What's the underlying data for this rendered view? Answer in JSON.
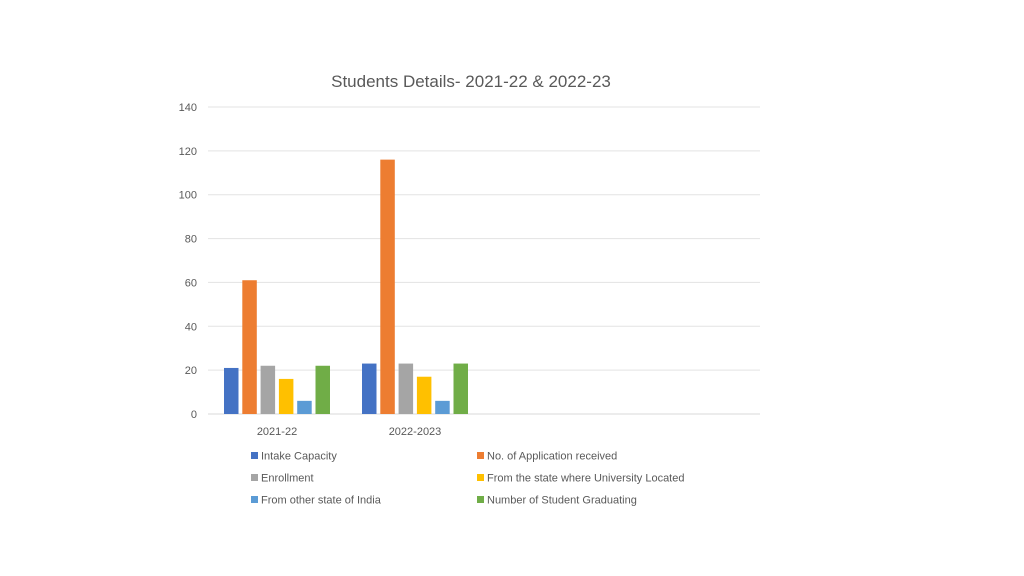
{
  "chart_data": {
    "type": "bar",
    "title": "Students Details- 2021-22 & 2022-23",
    "xlabel": "",
    "ylabel": "",
    "categories": [
      "2021-22",
      "2022-2023"
    ],
    "ylim": [
      0,
      140
    ],
    "yticks": [
      0,
      20,
      40,
      60,
      80,
      100,
      120,
      140
    ],
    "grid": true,
    "legend_position": "bottom",
    "series": [
      {
        "name": "Intake Capacity",
        "color": "#4472C4",
        "values": [
          21,
          23
        ]
      },
      {
        "name": "No. of Application received",
        "color": "#ED7D31",
        "values": [
          61,
          116
        ]
      },
      {
        "name": "Enrollment",
        "color": "#A5A5A5",
        "values": [
          22,
          23
        ]
      },
      {
        "name": "From the state where University Located",
        "color": "#FFC000",
        "values": [
          16,
          17
        ]
      },
      {
        "name": "From other state of India",
        "color": "#5B9BD5",
        "values": [
          6,
          6
        ]
      },
      {
        "name": "Number of Student Graduating",
        "color": "#70AD47",
        "values": [
          22,
          23
        ]
      }
    ]
  }
}
